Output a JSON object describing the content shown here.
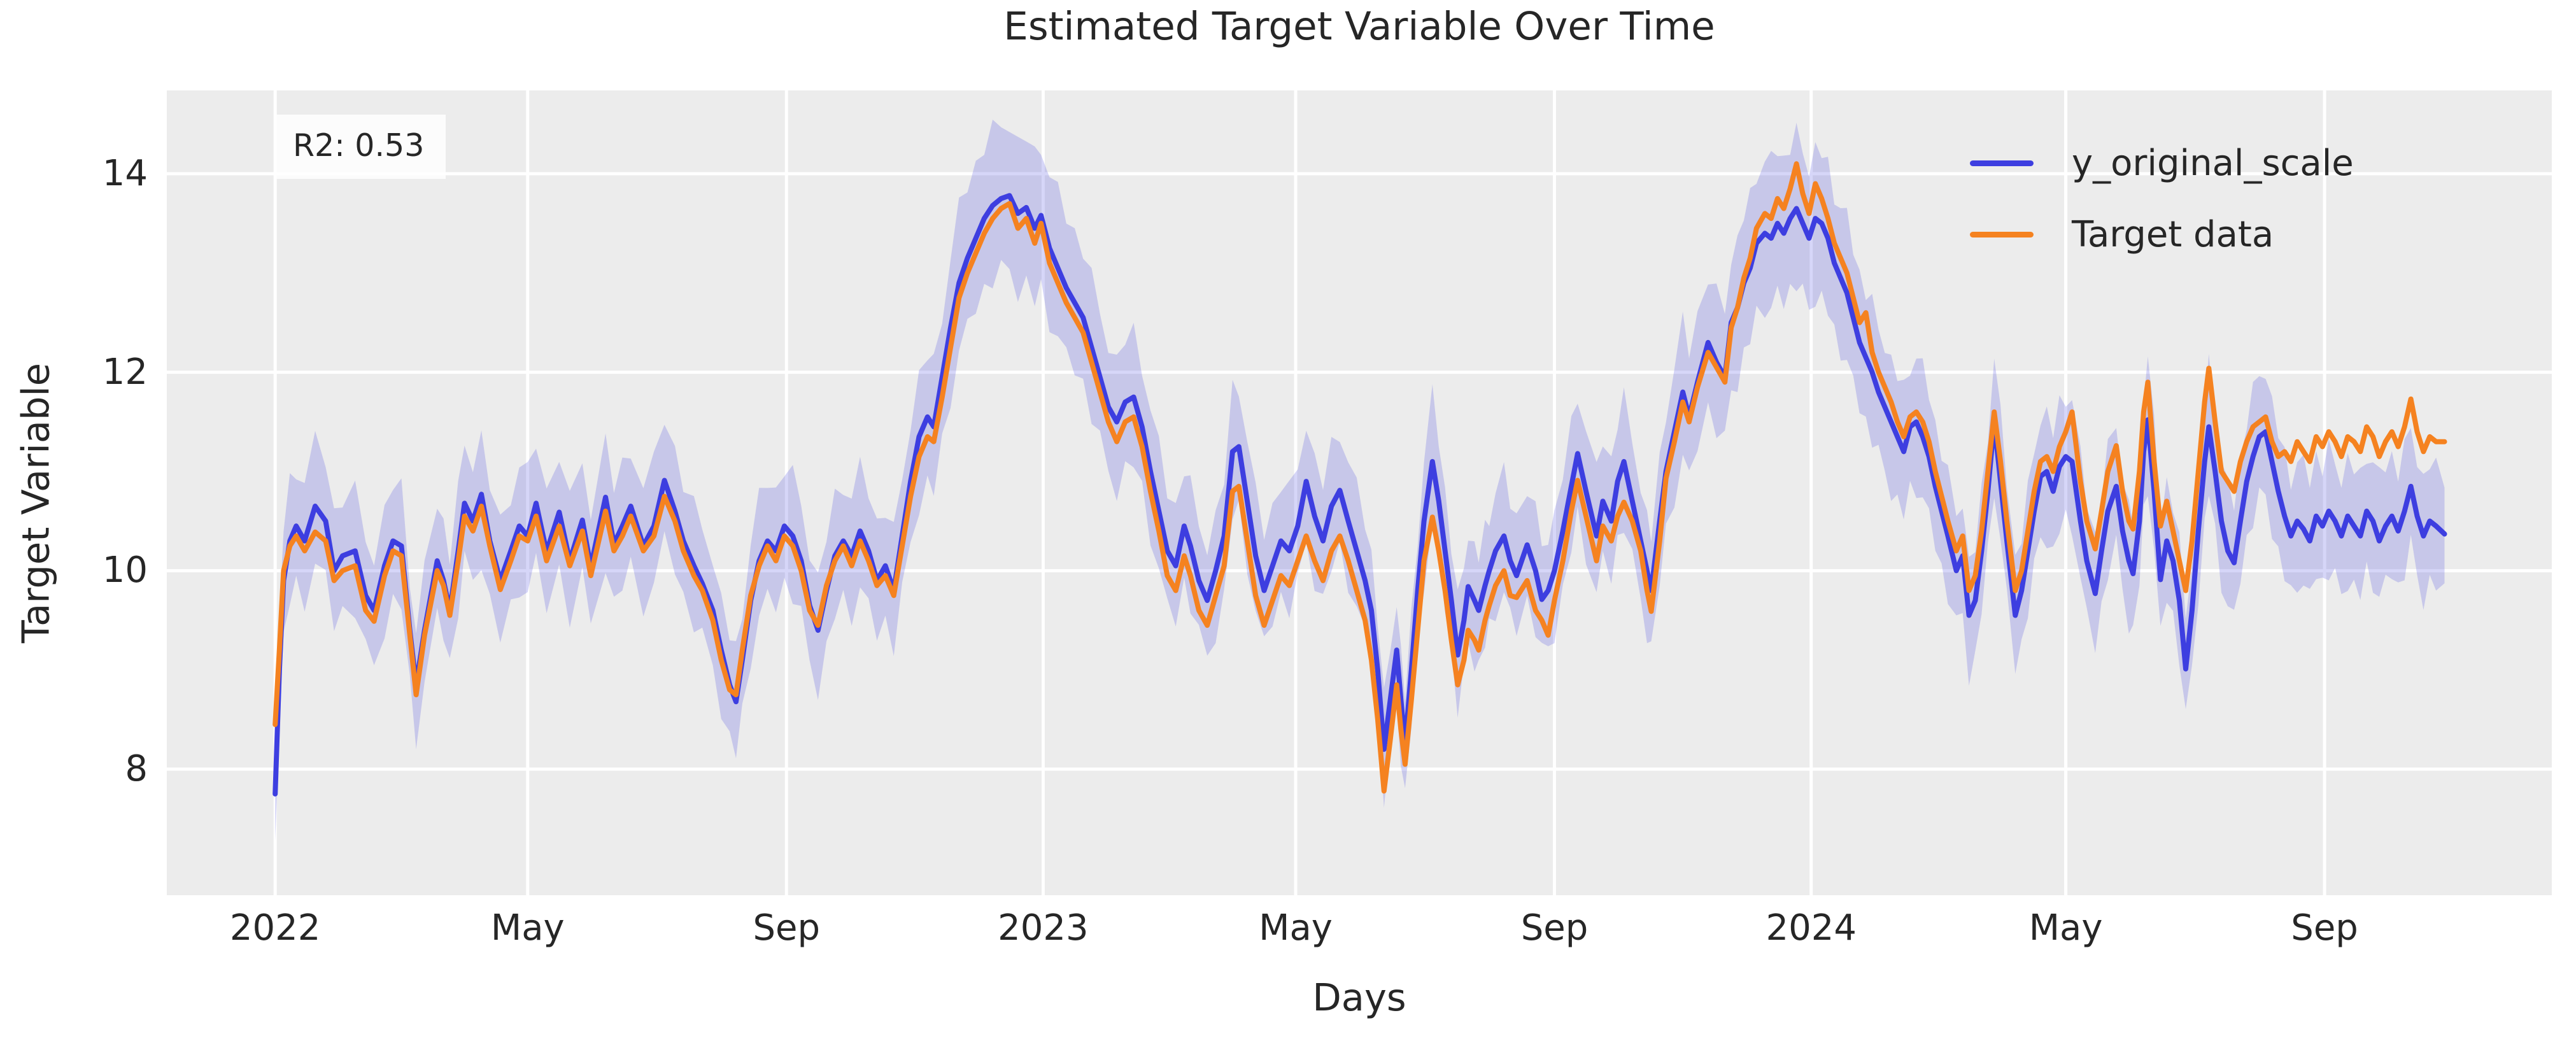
{
  "title": "Estimated Target Variable Over Time",
  "annotation": {
    "r2_label": "R2: 0.53"
  },
  "colors": {
    "plot_background": "#ececec",
    "figure_background": "#ffffff",
    "gridline": "#ffffff",
    "text": "#262626",
    "blue_line": "#3d3ee0",
    "orange_line": "#f58220",
    "band_fill": "#4444dd"
  },
  "chart_data": {
    "type": "line",
    "title": "Estimated Target Variable Over Time",
    "xlabel": "Days",
    "ylabel": "Target Variable",
    "x_unit": "days since 2022-01-01",
    "xlim_days": [
      -51.5,
      1082
    ],
    "ylim": [
      6.73,
      14.84
    ],
    "y_ticks": [
      8,
      10,
      12,
      14
    ],
    "x_ticks": [
      {
        "day": 0,
        "label": "2022"
      },
      {
        "day": 120,
        "label": "May"
      },
      {
        "day": 243,
        "label": "Sep"
      },
      {
        "day": 365,
        "label": "2023"
      },
      {
        "day": 485,
        "label": "May"
      },
      {
        "day": 608,
        "label": "Sep"
      },
      {
        "day": 730,
        "label": "2024"
      },
      {
        "day": 851,
        "label": "May"
      },
      {
        "day": 974,
        "label": "Sep"
      }
    ],
    "grid": true,
    "legend_position": "upper right",
    "x_days": [
      0,
      2,
      4,
      7,
      10,
      14,
      19,
      24,
      28,
      32,
      38,
      43,
      47,
      52,
      56,
      60,
      64,
      67,
      71,
      77,
      80,
      83,
      87,
      90,
      94,
      98,
      102,
      107,
      112,
      116,
      120,
      124,
      129,
      135,
      140,
      146,
      150,
      157,
      161,
      165,
      169,
      175,
      180,
      185,
      190,
      194,
      199,
      203,
      208,
      212,
      216,
      219,
      222,
      226,
      230,
      234,
      238,
      242,
      246,
      250,
      254,
      258,
      262,
      266,
      270,
      274,
      278,
      282,
      286,
      290,
      294,
      298,
      302,
      306,
      310,
      313,
      317,
      321,
      325,
      329,
      333,
      337,
      341,
      345,
      349,
      353,
      357,
      361,
      364,
      368,
      372,
      376,
      380,
      384,
      388,
      392,
      396,
      400,
      404,
      408,
      412,
      416,
      420,
      424,
      428,
      432,
      435,
      439,
      443,
      447,
      451,
      455,
      458,
      462,
      466,
      470,
      474,
      478,
      482,
      486,
      490,
      494,
      498,
      502,
      506,
      510,
      514,
      518,
      521,
      524,
      527,
      530,
      533,
      535,
      537,
      540,
      543,
      546,
      550,
      553,
      556,
      559,
      562,
      565,
      567,
      570,
      572,
      575,
      577,
      580,
      584,
      587,
      590,
      595,
      599,
      602,
      605,
      608,
      612,
      616,
      619,
      623,
      628,
      631,
      635,
      638,
      641,
      645,
      649,
      652,
      654,
      658,
      661,
      665,
      669,
      672,
      676,
      681,
      685,
      689,
      692,
      695,
      698,
      701,
      704,
      708,
      711,
      714,
      717,
      720,
      723,
      726,
      729,
      732,
      735,
      738,
      741,
      744,
      747,
      750,
      753,
      756,
      759,
      762,
      765,
      768,
      771,
      774,
      777,
      780,
      783,
      786,
      789,
      792,
      795,
      799,
      802,
      805,
      808,
      811,
      814,
      817,
      820,
      823,
      827,
      830,
      833,
      836,
      839,
      842,
      845,
      848,
      851,
      854,
      858,
      861,
      865,
      868,
      871,
      875,
      878,
      881,
      883,
      886,
      888,
      890,
      893,
      896,
      899,
      902,
      905,
      908,
      911,
      914,
      917,
      919,
      922,
      925,
      928,
      931,
      934,
      937,
      940,
      943,
      946,
      949,
      952,
      955,
      958,
      961,
      964,
      967,
      970,
      973,
      976,
      979,
      982,
      985,
      988,
      991,
      994,
      997,
      1000,
      1003,
      1006,
      1009,
      1012,
      1015,
      1018,
      1021,
      1024,
      1027,
      1031
    ],
    "series": [
      {
        "name": "y_original_scale",
        "color": "#3d3ee0",
        "values": [
          7.75,
          9.0,
          9.9,
          10.3,
          10.45,
          10.3,
          10.65,
          10.5,
          10.0,
          10.15,
          10.2,
          9.75,
          9.6,
          10.05,
          10.3,
          10.25,
          9.4,
          8.85,
          9.4,
          10.1,
          9.9,
          9.6,
          10.2,
          10.68,
          10.5,
          10.77,
          10.3,
          9.9,
          10.2,
          10.45,
          10.35,
          10.68,
          10.19,
          10.59,
          10.1,
          10.51,
          10.04,
          10.74,
          10.27,
          10.45,
          10.65,
          10.25,
          10.45,
          10.91,
          10.6,
          10.3,
          10.05,
          9.87,
          9.6,
          9.2,
          8.85,
          8.68,
          9.1,
          9.7,
          10.1,
          10.3,
          10.2,
          10.45,
          10.35,
          10.1,
          9.65,
          9.4,
          9.8,
          10.15,
          10.3,
          10.15,
          10.4,
          10.2,
          9.9,
          10.05,
          9.8,
          10.35,
          10.9,
          11.35,
          11.55,
          11.45,
          11.95,
          12.45,
          12.9,
          13.15,
          13.35,
          13.55,
          13.68,
          13.75,
          13.78,
          13.6,
          13.66,
          13.45,
          13.58,
          13.25,
          13.05,
          12.85,
          12.7,
          12.55,
          12.25,
          11.95,
          11.65,
          11.5,
          11.7,
          11.75,
          11.45,
          11.0,
          10.6,
          10.2,
          10.05,
          10.45,
          10.25,
          9.9,
          9.7,
          10.0,
          10.35,
          11.2,
          11.25,
          10.7,
          10.15,
          9.8,
          10.05,
          10.3,
          10.2,
          10.45,
          10.9,
          10.55,
          10.3,
          10.65,
          10.81,
          10.5,
          10.2,
          9.9,
          9.6,
          9.0,
          8.2,
          8.7,
          9.2,
          8.7,
          8.25,
          9.0,
          9.8,
          10.5,
          11.1,
          10.7,
          10.2,
          9.7,
          9.15,
          9.5,
          9.84,
          9.7,
          9.6,
          9.85,
          10.0,
          10.2,
          10.35,
          10.1,
          9.95,
          10.26,
          10.0,
          9.71,
          9.8,
          10.0,
          10.4,
          10.85,
          11.18,
          10.8,
          10.35,
          10.7,
          10.5,
          10.9,
          11.1,
          10.7,
          10.3,
          10.0,
          9.8,
          10.5,
          11.0,
          11.4,
          11.8,
          11.55,
          11.9,
          12.3,
          12.1,
          11.95,
          12.5,
          12.65,
          12.9,
          13.05,
          13.3,
          13.4,
          13.35,
          13.5,
          13.4,
          13.55,
          13.65,
          13.5,
          13.35,
          13.55,
          13.5,
          13.35,
          13.1,
          12.95,
          12.8,
          12.55,
          12.3,
          12.15,
          12.0,
          11.8,
          11.65,
          11.5,
          11.35,
          11.2,
          11.45,
          11.5,
          11.35,
          11.15,
          10.85,
          10.6,
          10.35,
          10.0,
          10.15,
          9.55,
          9.7,
          10.2,
          10.8,
          11.5,
          10.9,
          10.3,
          9.55,
          9.8,
          10.2,
          10.6,
          10.95,
          11.0,
          10.8,
          11.05,
          11.15,
          11.1,
          10.5,
          10.1,
          9.77,
          10.2,
          10.6,
          10.85,
          10.4,
          10.1,
          9.97,
          10.5,
          11.2,
          11.52,
          10.8,
          9.91,
          10.3,
          10.1,
          9.7,
          9.01,
          9.6,
          10.4,
          11.1,
          11.45,
          11.0,
          10.5,
          10.2,
          10.08,
          10.5,
          10.9,
          11.15,
          11.35,
          11.4,
          11.1,
          10.8,
          10.55,
          10.35,
          10.5,
          10.42,
          10.3,
          10.55,
          10.45,
          10.6,
          10.5,
          10.35,
          10.55,
          10.45,
          10.35,
          10.6,
          10.5,
          10.3,
          10.45,
          10.55,
          10.4,
          10.6,
          10.85,
          10.55,
          10.35,
          10.5,
          10.45,
          10.37
        ]
      },
      {
        "name": "Target data",
        "color": "#f58220",
        "values": [
          8.45,
          9.2,
          10.0,
          10.25,
          10.35,
          10.2,
          10.39,
          10.3,
          9.9,
          10.0,
          10.05,
          9.6,
          9.49,
          9.95,
          10.2,
          10.15,
          9.35,
          8.75,
          9.35,
          10.0,
          9.85,
          9.55,
          10.1,
          10.55,
          10.4,
          10.65,
          10.25,
          9.81,
          10.1,
          10.35,
          10.3,
          10.55,
          10.1,
          10.45,
          10.05,
          10.4,
          9.95,
          10.6,
          10.2,
          10.35,
          10.55,
          10.2,
          10.35,
          10.75,
          10.5,
          10.2,
          9.95,
          9.8,
          9.5,
          9.1,
          8.8,
          8.75,
          9.2,
          9.75,
          10.05,
          10.25,
          10.1,
          10.35,
          10.25,
          10.0,
          9.6,
          9.45,
          9.85,
          10.1,
          10.25,
          10.05,
          10.3,
          10.1,
          9.85,
          9.95,
          9.75,
          10.25,
          10.75,
          11.15,
          11.35,
          11.3,
          11.75,
          12.25,
          12.75,
          13.0,
          13.2,
          13.4,
          13.55,
          13.65,
          13.7,
          13.45,
          13.55,
          13.3,
          13.5,
          13.1,
          12.9,
          12.7,
          12.55,
          12.4,
          12.1,
          11.8,
          11.5,
          11.3,
          11.5,
          11.55,
          11.25,
          10.8,
          10.4,
          9.95,
          9.8,
          10.15,
          9.95,
          9.6,
          9.45,
          9.75,
          10.05,
          10.8,
          10.85,
          10.3,
          9.75,
          9.45,
          9.7,
          9.95,
          9.85,
          10.1,
          10.35,
          10.1,
          9.9,
          10.2,
          10.35,
          10.1,
          9.8,
          9.5,
          9.1,
          8.5,
          7.78,
          8.3,
          8.85,
          8.4,
          8.05,
          8.7,
          9.4,
          10.1,
          10.54,
          10.2,
          9.8,
          9.3,
          8.85,
          9.1,
          9.4,
          9.3,
          9.2,
          9.5,
          9.65,
          9.85,
          10.0,
          9.75,
          9.73,
          9.9,
          9.6,
          9.5,
          9.35,
          9.7,
          10.1,
          10.6,
          10.91,
          10.55,
          10.1,
          10.45,
          10.3,
          10.55,
          10.69,
          10.5,
          10.2,
          9.8,
          9.59,
          10.3,
          10.93,
          11.3,
          11.7,
          11.5,
          11.85,
          12.2,
          12.05,
          11.9,
          12.45,
          12.65,
          12.95,
          13.15,
          13.45,
          13.6,
          13.55,
          13.75,
          13.65,
          13.85,
          14.1,
          13.8,
          13.6,
          13.9,
          13.75,
          13.55,
          13.3,
          13.15,
          13.0,
          12.75,
          12.5,
          12.6,
          12.2,
          12.0,
          11.85,
          11.7,
          11.5,
          11.35,
          11.55,
          11.6,
          11.5,
          11.3,
          11.0,
          10.75,
          10.5,
          10.2,
          10.35,
          9.8,
          9.95,
          10.4,
          11.0,
          11.6,
          11.1,
          10.5,
          9.8,
          10.0,
          10.4,
          10.8,
          11.1,
          11.15,
          11.0,
          11.25,
          11.4,
          11.6,
          10.9,
          10.5,
          10.22,
          10.6,
          11.0,
          11.26,
          10.8,
          10.5,
          10.42,
          11.0,
          11.6,
          11.9,
          11.1,
          10.45,
          10.7,
          10.4,
          10.1,
          9.8,
          10.3,
          11.0,
          11.7,
          12.04,
          11.5,
          11.0,
          10.9,
          10.8,
          11.1,
          11.3,
          11.45,
          11.5,
          11.55,
          11.3,
          11.15,
          11.2,
          11.1,
          11.3,
          11.2,
          11.1,
          11.35,
          11.25,
          11.4,
          11.3,
          11.15,
          11.35,
          11.3,
          11.2,
          11.45,
          11.35,
          11.15,
          11.3,
          11.4,
          11.25,
          11.45,
          11.73,
          11.4,
          11.2,
          11.35,
          11.3,
          11.3
        ]
      }
    ],
    "band": {
      "around_series": "y_original_scale",
      "rel_halfwidth": 0.045,
      "jitter_cycle": [
        0.02,
        0.16,
        0.05,
        0.22,
        0.0,
        0.12,
        0.28,
        0.07,
        0.18,
        0.03,
        0.25,
        0.1
      ],
      "color": "#4444dd",
      "opacity": 0.22
    }
  },
  "legend": {
    "items": [
      {
        "label": "y_original_scale",
        "color": "#3d3ee0"
      },
      {
        "label": "Target data",
        "color": "#f58220"
      }
    ]
  }
}
